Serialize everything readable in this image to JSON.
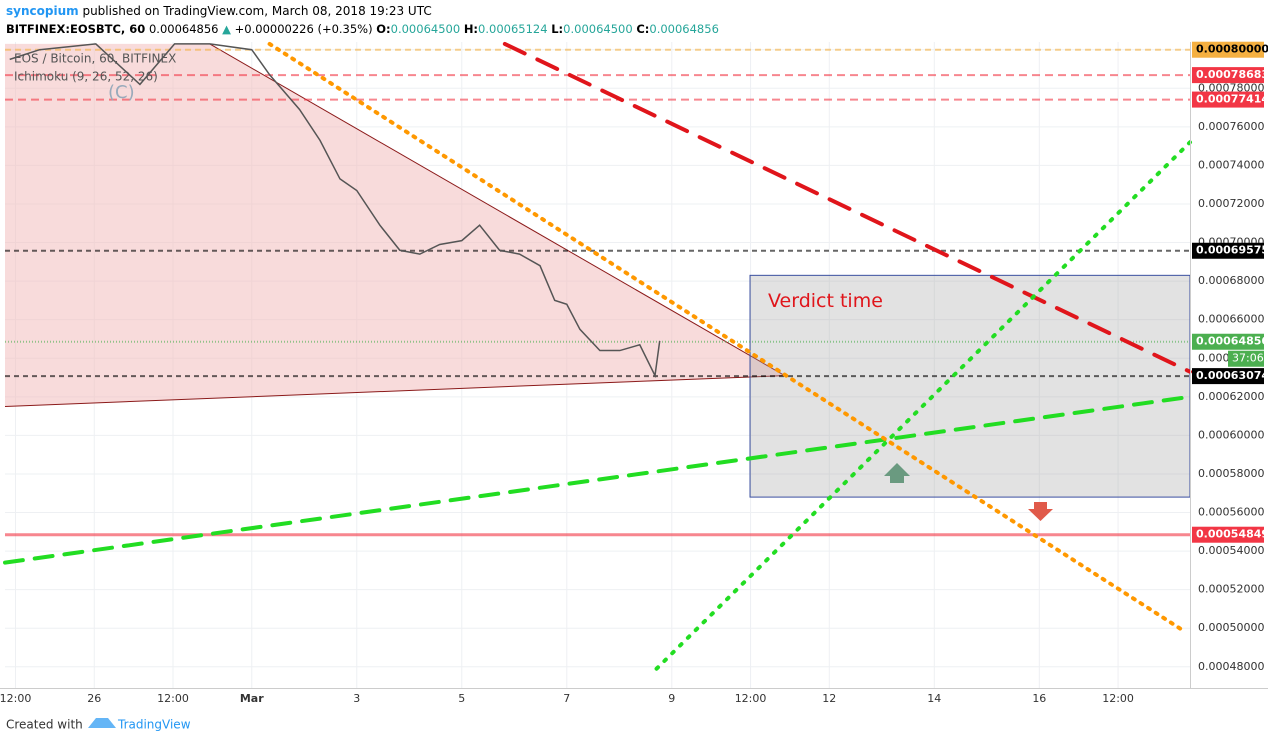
{
  "header": {
    "author": "syncopium",
    "published": "published on TradingView.com, March 08, 2018 19:23 UTC",
    "symbol": "BITFINEX:EOSBTC, 60",
    "last": "0.00064856",
    "change": "+0.00000226 (+0.35%)",
    "ohlc": [
      {
        "label": "O:",
        "value": "0.00064500"
      },
      {
        "label": "H:",
        "value": "0.00065124"
      },
      {
        "label": "L:",
        "value": "0.00064500"
      },
      {
        "label": "C:",
        "value": "0.00064856"
      }
    ]
  },
  "legend": {
    "series": "EOS / Bitcoin, 60, BITFINEX",
    "indicator": "Ichimoku (9, 26, 52, 26)",
    "watermark": "(C)"
  },
  "footer": {
    "created": "Created with",
    "brand": "TradingView"
  },
  "chart_data": {
    "type": "line",
    "xlim": [
      -4.7,
      17.87
    ],
    "ylim": [
      0.000469,
      0.000804
    ],
    "xticks": [
      {
        "value": -4.5,
        "label": "12:00"
      },
      {
        "value": -3,
        "label": "26"
      },
      {
        "value": -1.5,
        "label": "12:00"
      },
      {
        "value": 0,
        "label": "Mar"
      },
      {
        "value": 2,
        "label": "3"
      },
      {
        "value": 4,
        "label": "5"
      },
      {
        "value": 6,
        "label": "7"
      },
      {
        "value": 8,
        "label": "9"
      },
      {
        "value": 9.5,
        "label": "12:00"
      },
      {
        "value": 11,
        "label": "12"
      },
      {
        "value": 13,
        "label": "14"
      },
      {
        "value": 15,
        "label": "16"
      },
      {
        "value": 16.5,
        "label": "12:00"
      }
    ],
    "yticks": [
      {
        "value": 0.00048,
        "label": "0.00048000"
      },
      {
        "value": 0.0005,
        "label": "0.00050000"
      },
      {
        "value": 0.00052,
        "label": "0.00052000"
      },
      {
        "value": 0.00054,
        "label": "0.00054000"
      },
      {
        "value": 0.00056,
        "label": "0.00056000"
      },
      {
        "value": 0.00058,
        "label": "0.00058000"
      },
      {
        "value": 0.0006,
        "label": "0.00060000"
      },
      {
        "value": 0.00062,
        "label": "0.00062000"
      },
      {
        "value": 0.00064,
        "label": "0.00064000"
      },
      {
        "value": 0.00066,
        "label": "0.00066000"
      },
      {
        "value": 0.00068,
        "label": "0.00068000"
      },
      {
        "value": 0.0007,
        "label": "0.00070000"
      },
      {
        "value": 0.00072,
        "label": "0.00072000"
      },
      {
        "value": 0.00074,
        "label": "0.00074000"
      },
      {
        "value": 0.00076,
        "label": "0.00076000"
      },
      {
        "value": 0.00078,
        "label": "0.00078000"
      },
      {
        "value": 0.0008,
        "label": "0.00080000"
      }
    ],
    "grid": true,
    "series": [
      {
        "color": "#555555",
        "x": [
          -4.61,
          -4.04,
          -2.97,
          -2.13,
          -1.47,
          -0.8,
          0,
          0.34,
          0.91,
          1.3,
          1.68,
          2,
          2.44,
          2.82,
          3.2,
          3.58,
          4,
          4.34,
          4.72,
          5.1,
          5.49,
          5.77,
          6,
          6.25,
          6.63,
          7.01,
          7.39,
          7.68,
          7.77
        ],
        "values": [
          0.000795,
          0.0008,
          0.000803,
          0.000782,
          0.000803,
          0.000803,
          0.0008,
          0.000787,
          0.000769,
          0.000753,
          0.000733,
          0.000727,
          0.000709,
          0.000696,
          0.000694,
          0.000699,
          0.000701,
          0.000709,
          0.000696,
          0.000694,
          0.000688,
          0.00067,
          0.000668,
          0.000655,
          0.000644,
          0.000644,
          0.000647,
          0.000631,
          0.000649
        ]
      }
    ],
    "levels": [
      {
        "value": 0.0008,
        "label": "0.00080000",
        "color": "#f5b041",
        "text_color": "#000000",
        "dash": "6,4"
      },
      {
        "value": 0.00078683,
        "label": "0.00078683",
        "color": "#f23645",
        "text_color": "#ffffff",
        "dash": "8,5"
      },
      {
        "value": 0.00077414,
        "label": "0.00077414",
        "color": "#f23645",
        "text_color": "#ffffff",
        "dash": "8,5"
      },
      {
        "value": 0.00069575,
        "label": "0.00069575",
        "color": "#000000",
        "text_color": "#ffffff",
        "dash": "5,4"
      },
      {
        "value": 0.00064856,
        "label": "0.00064856",
        "color": "#4caf50",
        "text_color": "#ffffff",
        "dash": "1,2",
        "sub": "37:06"
      },
      {
        "value": 0.00063074,
        "label": "0.00063074",
        "color": "#000000",
        "text_color": "#ffffff",
        "dash": "5,4"
      },
      {
        "value": 0.00054849,
        "label": "0.00054849",
        "color": "#f23645",
        "text_color": "#ffffff",
        "dash": ""
      }
    ],
    "triangle": {
      "color": "#f2b8b8",
      "upper": {
        "x": [
          -0.8,
          10.15
        ],
        "y": [
          0.000803,
          0.000631
        ]
      },
      "lower": {
        "x": [
          -4.7,
          10.15
        ],
        "y": [
          0.000615,
          0.000631
        ]
      }
    },
    "drawings": [
      {
        "color": "#e0151b",
        "dash": "22,14",
        "width": 4,
        "x": [
          4.82,
          17.87
        ],
        "y": [
          0.000803,
          0.000633
        ]
      },
      {
        "color": "#22dd22",
        "dash": "18,12",
        "width": 4,
        "x": [
          -4.7,
          17.87
        ],
        "y": [
          0.000534,
          0.00062
        ]
      },
      {
        "color": "#22dd22",
        "dash": "2,9",
        "width": 4,
        "x": [
          7.71,
          17.87
        ],
        "y": [
          0.000479,
          0.000752
        ]
      },
      {
        "color": "#ff9800",
        "dash": "2,7",
        "width": 4,
        "x": [
          0.34,
          17.73
        ],
        "y": [
          0.000803,
          0.000499
        ]
      }
    ],
    "box": {
      "label": "Verdict time",
      "x": [
        9.49,
        17.87
      ],
      "y": [
        0.000683,
        0.000568
      ]
    }
  }
}
